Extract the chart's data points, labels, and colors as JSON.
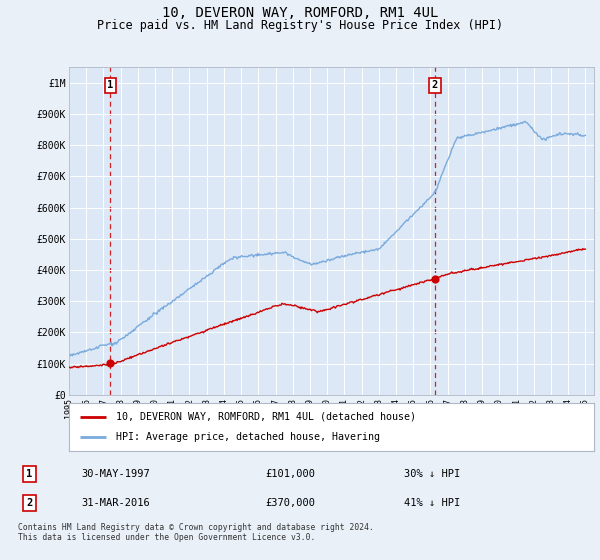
{
  "title": "10, DEVERON WAY, ROMFORD, RM1 4UL",
  "subtitle": "Price paid vs. HM Land Registry's House Price Index (HPI)",
  "title_fontsize": 10,
  "subtitle_fontsize": 8.5,
  "background_color": "#eaf0f8",
  "plot_bg_color": "#dce8f5",
  "red_line_color": "#cc0000",
  "blue_line_color": "#7aaadd",
  "marker_color": "#cc0000",
  "vline_color": "#cc0000",
  "transaction1": {
    "date_num": 1997.41,
    "price": 101000,
    "label": "1",
    "date_str": "30-MAY-1997",
    "pct": "30% ↓ HPI"
  },
  "transaction2": {
    "date_num": 2016.25,
    "price": 370000,
    "label": "2",
    "date_str": "31-MAR-2016",
    "pct": "41% ↓ HPI"
  },
  "ylim": [
    0,
    1050000
  ],
  "xlim_start": 1995.0,
  "xlim_end": 2025.5,
  "yticks": [
    0,
    100000,
    200000,
    300000,
    400000,
    500000,
    600000,
    700000,
    800000,
    900000,
    1000000
  ],
  "ytick_labels": [
    "£0",
    "£100K",
    "£200K",
    "£300K",
    "£400K",
    "£500K",
    "£600K",
    "£700K",
    "£800K",
    "£900K",
    "£1M"
  ],
  "xlabel_years": [
    1995,
    1996,
    1997,
    1998,
    1999,
    2000,
    2001,
    2002,
    2003,
    2004,
    2005,
    2006,
    2007,
    2008,
    2009,
    2010,
    2011,
    2012,
    2013,
    2014,
    2015,
    2016,
    2017,
    2018,
    2019,
    2020,
    2021,
    2022,
    2023,
    2024,
    2025
  ],
  "legend_line1": "10, DEVERON WAY, ROMFORD, RM1 4UL (detached house)",
  "legend_line2": "HPI: Average price, detached house, Havering",
  "footer": "Contains HM Land Registry data © Crown copyright and database right 2024.\nThis data is licensed under the Open Government Licence v3.0.",
  "grid_color": "#ffffff",
  "grid_alpha": 1.0
}
